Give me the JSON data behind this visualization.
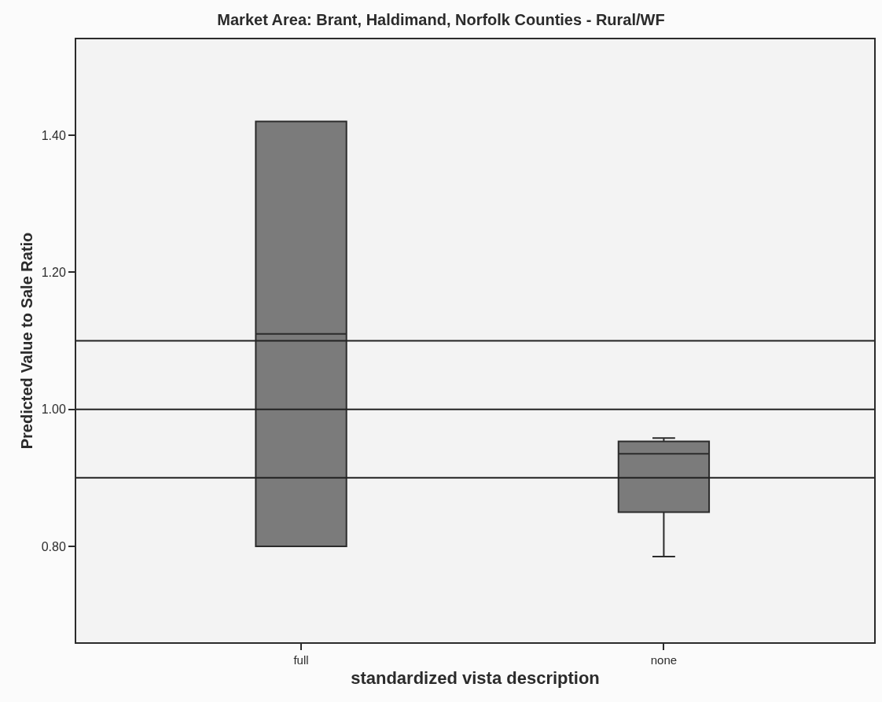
{
  "chart_data": {
    "type": "box",
    "title": "Market Area: Brant, Haldimand, Norfolk Counties - Rural/WF",
    "xlabel": "standardized vista description",
    "ylabel": "Predicted Value to Sale Ratio",
    "categories": [
      "full",
      "none"
    ],
    "series": [
      {
        "color": "#7b7b7b",
        "boxes": [
          {
            "low": 0.8,
            "q1": 0.8,
            "median": 1.11,
            "q3": 1.42,
            "high": 1.42
          },
          {
            "low": 0.785,
            "q1": 0.85,
            "median": 0.935,
            "q3": 0.953,
            "high": 0.958
          }
        ]
      }
    ],
    "ylim": [
      0.66,
      1.54
    ],
    "yticks": [
      {
        "value": 0.8,
        "label": "0.80"
      },
      {
        "value": 1.0,
        "label": "1.00"
      },
      {
        "value": 1.2,
        "label": "1.20"
      },
      {
        "value": 1.4,
        "label": "1.40"
      }
    ],
    "ref_lines": [
      {
        "axis": "y",
        "value": 0.9,
        "color": "#222222"
      },
      {
        "axis": "y",
        "value": 1.0,
        "color": "#222222"
      },
      {
        "axis": "y",
        "value": 1.1,
        "color": "#222222"
      }
    ],
    "grid": false
  }
}
